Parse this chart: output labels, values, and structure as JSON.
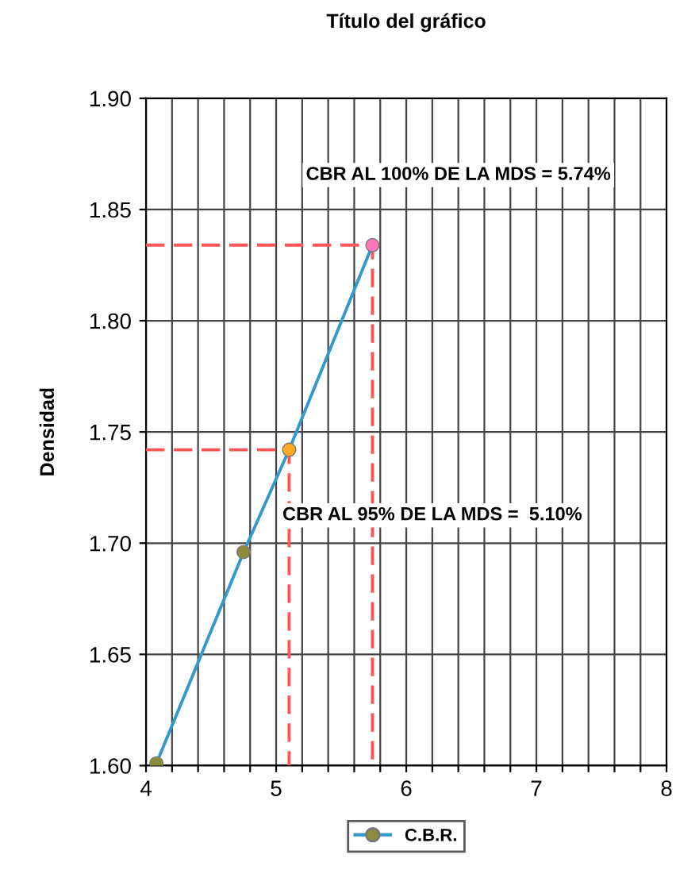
{
  "chart_data": {
    "type": "line",
    "title": "Título del gráfico",
    "ylabel": "Densidad",
    "xlim": [
      4,
      8
    ],
    "ylim": [
      1.6,
      1.9
    ],
    "xticks": [
      4,
      {
        "value": 4.2,
        "label": null
      },
      {
        "value": 4.4,
        "label": null
      },
      {
        "value": 4.6,
        "label": null
      },
      {
        "value": 4.8,
        "label": null
      },
      5,
      {
        "value": 5.2,
        "label": null
      },
      {
        "value": 5.4,
        "label": null
      },
      {
        "value": 5.6,
        "label": null
      },
      {
        "value": 5.8,
        "label": null
      },
      6,
      {
        "value": 6.2,
        "label": null
      },
      {
        "value": 6.4,
        "label": null
      },
      {
        "value": 6.6,
        "label": null
      },
      {
        "value": 6.8,
        "label": null
      },
      7,
      {
        "value": 7.2,
        "label": null
      },
      {
        "value": 7.4,
        "label": null
      },
      {
        "value": 7.6,
        "label": null
      },
      {
        "value": 7.8,
        "label": null
      },
      8
    ],
    "yticks": [
      {
        "value": 1.6,
        "label": "1.60"
      },
      {
        "value": 1.65,
        "label": "1.65"
      },
      {
        "value": 1.7,
        "label": "1.70"
      },
      {
        "value": 1.75,
        "label": "1.75"
      },
      {
        "value": 1.8,
        "label": "1.80"
      },
      {
        "value": 1.85,
        "label": "1.85"
      },
      {
        "value": 1.9,
        "label": "1.90"
      }
    ],
    "grid": true,
    "legend": "bottom",
    "marker": "circle",
    "line_style": "solid",
    "series": [
      {
        "type": "line",
        "x": [
          4,
          5.74,
          5.74
        ],
        "values": [
          1.834,
          1.834,
          1.6
        ],
        "color": "#ff5555",
        "line_style": "dashed",
        "marker": "none"
      },
      {
        "type": "line",
        "x": [
          4,
          5.1,
          5.1
        ],
        "values": [
          1.742,
          1.742,
          1.6
        ],
        "color": "#ff5555",
        "line_style": "dashed",
        "marker": "none"
      },
      {
        "name": "C.B.R.",
        "x": [
          4.08,
          4.75,
          5.1,
          5.74
        ],
        "values": [
          1.601,
          1.696,
          1.742,
          1.834
        ],
        "color": "#3399cc",
        "colors": [
          "#8c8c3c",
          "#8c8c3c",
          "#ffaa22",
          "#ff77bb"
        ]
      }
    ],
    "annotations": [
      "CBR AL 100% DE LA MDS = 5.74%",
      "CBR AL 95% DE LA MDS =  5.10%"
    ]
  }
}
